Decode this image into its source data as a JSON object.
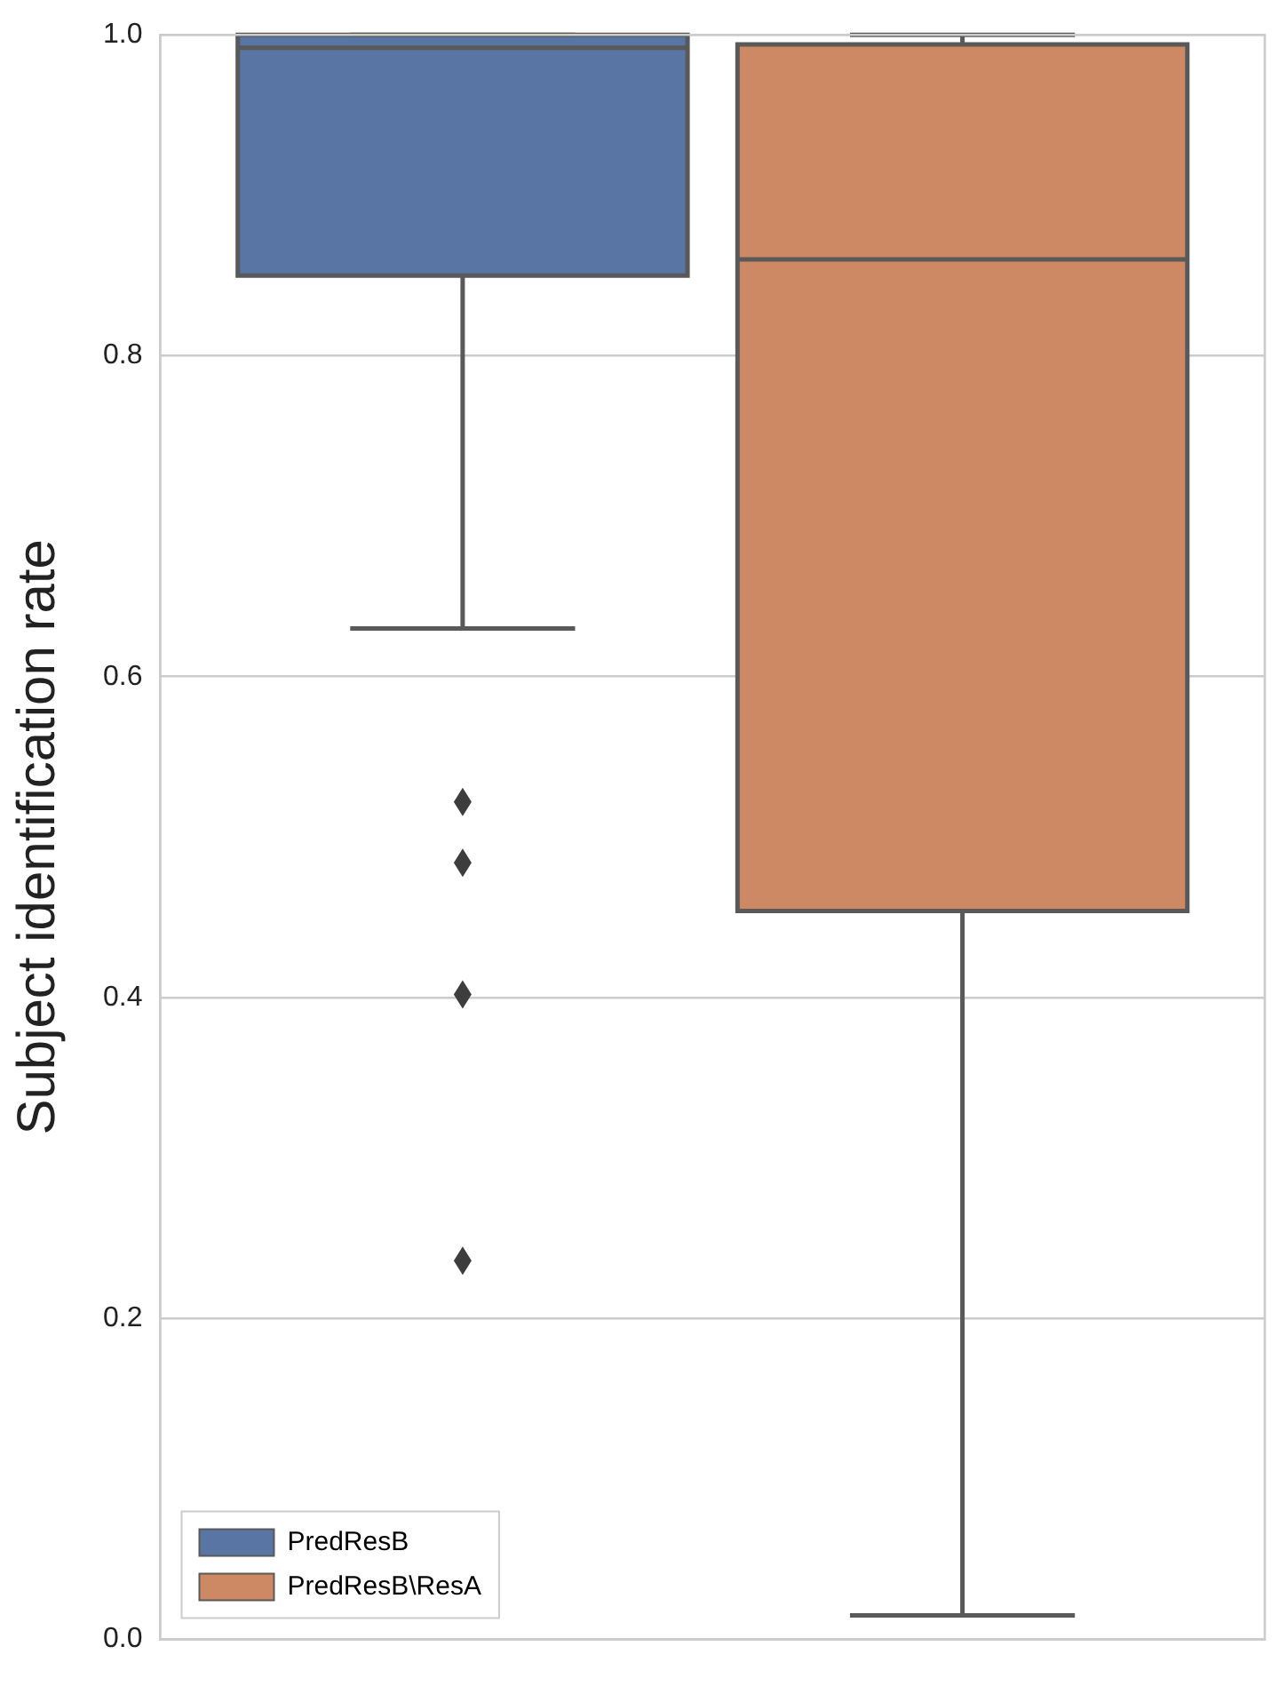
{
  "chart_data": {
    "type": "box",
    "ylabel": "Subject identification rate",
    "categories": [
      null
    ],
    "ylim": [
      0,
      1
    ],
    "yticks": [
      {
        "value": 0,
        "label": "0.0"
      },
      0.2,
      0.4,
      0.6,
      0.8,
      {
        "value": 1,
        "label": "1.0"
      }
    ],
    "grid": "y",
    "legend": "bottom left",
    "marker": "diamond",
    "series": [
      {
        "name": "PredResB",
        "color": "#5875a4",
        "boxes": [
          {
            "low": 0.63,
            "q1": 0.85,
            "median": 0.992,
            "q3": 1.0,
            "high": 1.0,
            "outliers": [
              0.522,
              0.484,
              0.402,
              0.236
            ]
          }
        ]
      },
      {
        "name": "PredResB\\ResA",
        "color": "#cc8963",
        "boxes": [
          {
            "low": 0.015,
            "q1": 0.454,
            "median": 0.86,
            "q3": 0.994,
            "high": 1.0
          }
        ]
      }
    ]
  }
}
